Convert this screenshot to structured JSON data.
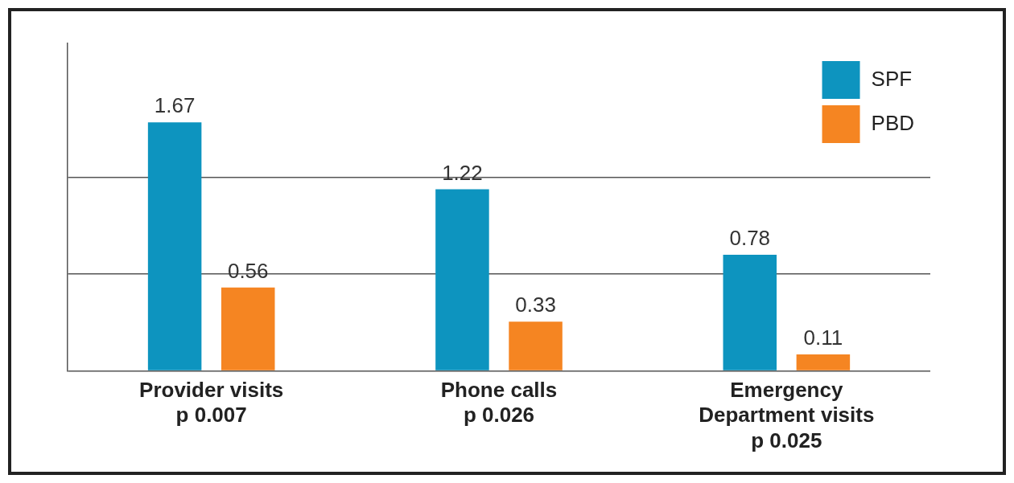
{
  "chart_data": {
    "type": "bar",
    "categories": [
      [
        "Provider visits",
        "p 0.007"
      ],
      [
        "Phone calls",
        "p 0.026"
      ],
      [
        "Emergency",
        "Department visits",
        "p 0.025"
      ]
    ],
    "series": [
      {
        "name": "SPF",
        "color": "#0d94bf",
        "values": [
          1.67,
          1.22,
          0.78
        ]
      },
      {
        "name": "PBD",
        "color": "#f58522",
        "values": [
          0.56,
          0.33,
          0.11
        ]
      }
    ],
    "ylim": [
      0,
      2.2
    ],
    "yticks": [
      0,
      0.65,
      1.3
    ],
    "grid": true,
    "legend": "upper right",
    "data_labels": true,
    "tick_labels": "x"
  }
}
